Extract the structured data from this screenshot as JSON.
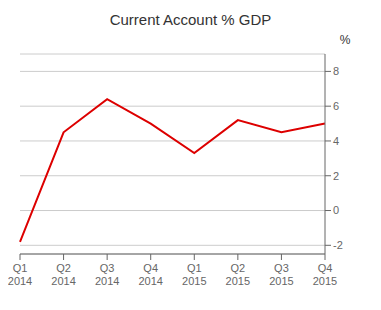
{
  "chart_data": {
    "type": "line",
    "title": "Current Account % GDP",
    "ylabel": "%",
    "categories": [
      "Q1\n2014",
      "Q2\n2014",
      "Q3\n2014",
      "Q4\n2014",
      "Q1\n2015",
      "Q2\n2015",
      "Q3\n2015",
      "Q4\n2015"
    ],
    "values": [
      -1.8,
      4.5,
      6.4,
      5.0,
      3.3,
      5.2,
      4.5,
      5.0
    ],
    "color": "#dd0000",
    "ylim": [
      -2.5,
      9.0
    ],
    "yticks": [
      -2,
      0,
      2,
      4,
      6,
      8
    ],
    "grid": true
  }
}
